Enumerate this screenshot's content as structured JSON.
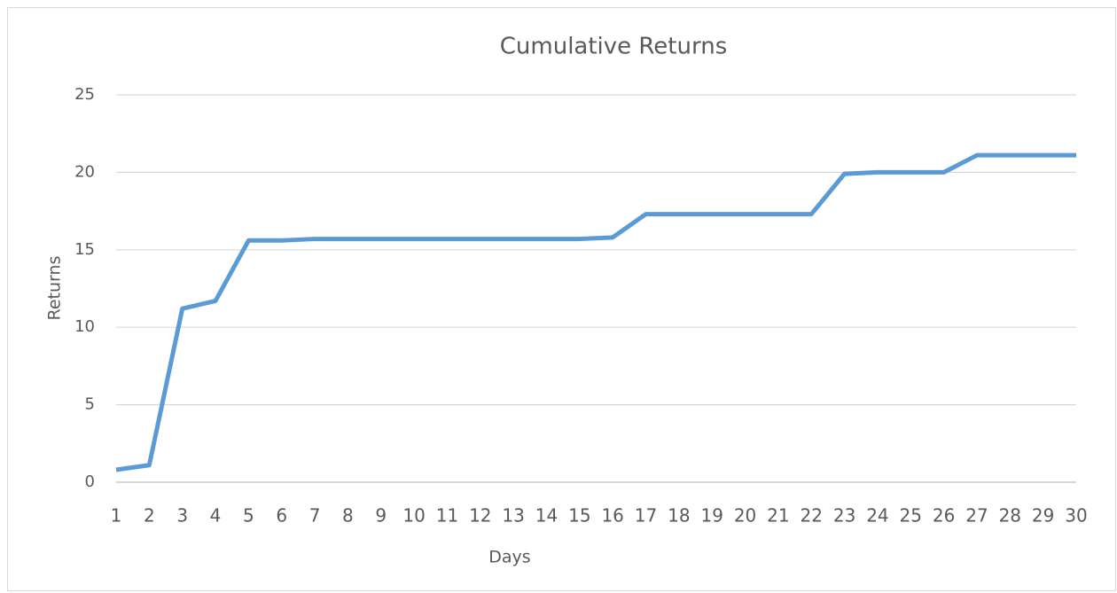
{
  "chart_data": {
    "type": "line",
    "title": "Cumulative Returns",
    "x_label": "Days",
    "y_label": "Returns",
    "categories": [
      "1",
      "2",
      "3",
      "4",
      "5",
      "6",
      "7",
      "8",
      "9",
      "10",
      "11",
      "12",
      "13",
      "14",
      "15",
      "16",
      "17",
      "18",
      "19",
      "20",
      "21",
      "22",
      "23",
      "24",
      "25",
      "26",
      "27",
      "28",
      "29",
      "30"
    ],
    "series": [
      {
        "name": "Returns",
        "color": "#5b9bd5",
        "values": [
          0.8,
          1.1,
          11.2,
          11.7,
          15.6,
          15.6,
          15.7,
          15.7,
          15.7,
          15.7,
          15.7,
          15.7,
          15.7,
          15.7,
          15.7,
          15.8,
          17.3,
          17.3,
          17.3,
          17.3,
          17.3,
          17.3,
          19.9,
          20.0,
          20.0,
          20.0,
          21.1,
          21.1,
          21.1,
          21.1
        ]
      }
    ],
    "ylim": [
      0,
      25
    ],
    "yticks": [
      0,
      5,
      10,
      15,
      20,
      25
    ],
    "grid": true
  }
}
